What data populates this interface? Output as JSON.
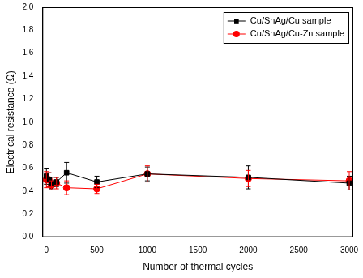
{
  "chart_data": {
    "type": "line",
    "x_label": "Number of thermal cycles",
    "y_label": "Electrical resistance (Ω)",
    "x": [
      0,
      25,
      50,
      100,
      200,
      500,
      1000,
      2000,
      3000
    ],
    "series": [
      {
        "name": "Cu/SnAg/Cu sample",
        "color": "#000000",
        "marker": "square",
        "values": [
          0.53,
          0.5,
          0.47,
          0.48,
          0.56,
          0.48,
          0.55,
          0.52,
          0.47
        ],
        "errors": [
          0.07,
          0.06,
          0.05,
          0.04,
          0.09,
          0.05,
          0.06,
          0.1,
          0.06
        ]
      },
      {
        "name": "Cu/SnAg/Cu-Zn sample",
        "color": "#ff0000",
        "marker": "circle",
        "values": [
          0.5,
          0.5,
          0.45,
          0.47,
          0.43,
          0.42,
          0.55,
          0.51,
          0.49
        ],
        "errors": [
          0.07,
          0.06,
          0.04,
          0.05,
          0.06,
          0.04,
          0.07,
          0.07,
          0.08
        ]
      }
    ],
    "xlim": [
      -40,
      3040
    ],
    "xticks": [
      0,
      500,
      1000,
      1500,
      2000,
      2500,
      3000
    ],
    "ylim": [
      0,
      2
    ],
    "yticks": [
      {
        "value": 0,
        "label": "0.0"
      },
      0.2,
      0.4,
      0.6,
      0.8,
      {
        "value": 1,
        "label": "1.0"
      },
      1.2,
      1.4,
      1.6,
      1.8,
      {
        "value": 2,
        "label": "2.0"
      }
    ],
    "grid": false,
    "legend": "upper right"
  }
}
